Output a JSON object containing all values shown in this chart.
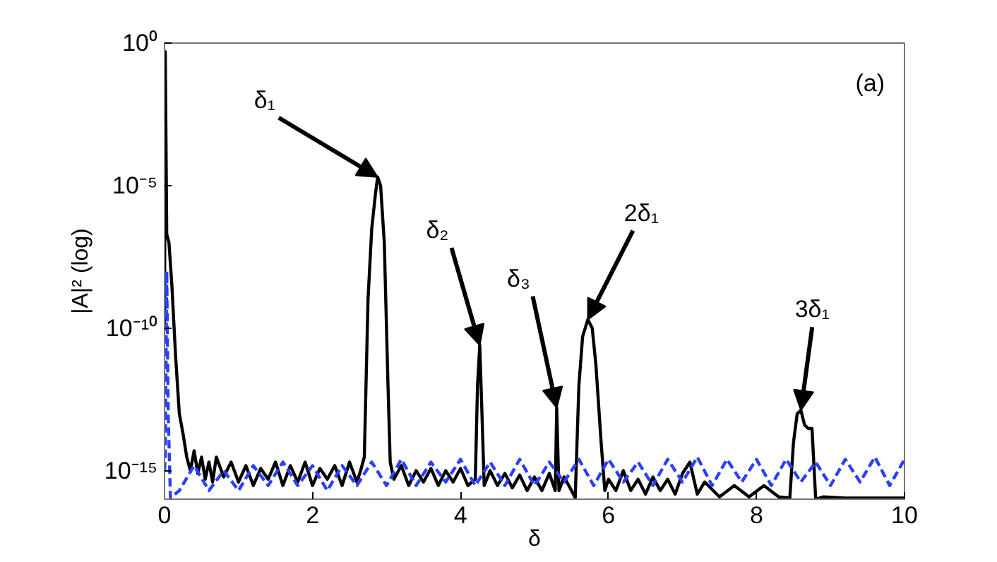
{
  "chart_data": {
    "type": "line",
    "xlabel": "δ",
    "ylabel": "|A|² (log)",
    "log": "y",
    "grid": false,
    "marker": "none",
    "xlim": [
      0,
      10
    ],
    "xticks": [
      0,
      2,
      4,
      6,
      8,
      10
    ],
    "ylim": [
      1e-16,
      1
    ],
    "yticks": [
      {
        "value": 1,
        "label": "10⁰"
      },
      {
        "value": 1e-05,
        "label": "10⁻⁵"
      },
      {
        "value": 1e-10,
        "label": "10⁻¹⁰"
      },
      {
        "value": 1e-15,
        "label": "10⁻¹⁵"
      }
    ],
    "annotations": [
      "(a)",
      {
        "text": "δ₁",
        "x": 2.88,
        "y": 2e-05
      },
      {
        "text": "δ₂",
        "x": 4.26,
        "y": 2.5e-11
      },
      {
        "text": "δ₃",
        "x": 5.3,
        "y": 1.6e-13
      },
      {
        "text": "2δ₁",
        "x": 5.72,
        "y": 2e-10
      },
      {
        "text": "3δ₁",
        "x": 8.6,
        "y": 1.3e-13
      }
    ],
    "series": [
      {
        "color": "#000000",
        "line_style": "solid",
        "x": [
          0.0,
          0.01,
          0.03,
          0.06,
          0.1,
          0.15,
          0.2,
          0.25,
          0.3,
          0.35,
          0.4,
          0.45,
          0.5,
          0.55,
          0.6,
          0.65,
          0.7,
          0.8,
          0.9,
          1.0,
          1.1,
          1.2,
          1.3,
          1.4,
          1.5,
          1.6,
          1.7,
          1.8,
          1.9,
          2.0,
          2.1,
          2.2,
          2.3,
          2.4,
          2.5,
          2.6,
          2.65,
          2.7,
          2.75,
          2.8,
          2.85,
          2.88,
          2.92,
          2.97,
          3.02,
          3.05,
          3.1,
          3.2,
          3.3,
          3.4,
          3.5,
          3.6,
          3.7,
          3.8,
          3.9,
          4.0,
          4.1,
          4.2,
          4.23,
          4.26,
          4.29,
          4.32,
          4.4,
          4.5,
          4.6,
          4.7,
          4.8,
          4.9,
          5.0,
          5.1,
          5.2,
          5.28,
          5.3,
          5.33,
          5.4,
          5.5,
          5.55,
          5.6,
          5.65,
          5.72,
          5.78,
          5.83,
          5.9,
          5.95,
          6.0,
          6.1,
          6.2,
          6.3,
          6.4,
          6.5,
          6.6,
          6.7,
          6.8,
          6.9,
          7.0,
          7.1,
          7.2,
          7.3,
          7.5,
          7.7,
          7.9,
          8.1,
          8.3,
          8.45,
          8.5,
          8.55,
          8.6,
          8.65,
          8.7,
          8.75,
          8.8,
          8.9,
          9.2,
          9.6,
          10.0
        ],
        "values": [
          1e-10,
          0.5,
          2e-07,
          1e-07,
          3e-09,
          1e-11,
          1e-13,
          2e-14,
          3e-15,
          1e-15,
          5e-15,
          8e-16,
          3e-15,
          5e-16,
          2e-15,
          4e-16,
          3e-15,
          6e-16,
          2e-15,
          4e-16,
          1.5e-15,
          3e-16,
          1.2e-15,
          5e-16,
          2e-15,
          3e-16,
          1.5e-15,
          4e-16,
          2e-15,
          3e-16,
          1.2e-15,
          5e-16,
          1.5e-15,
          3e-16,
          2e-15,
          4e-16,
          1e-15,
          3e-15,
          1e-09,
          3e-07,
          5e-06,
          2e-05,
          1e-05,
          1e-07,
          1e-12,
          2e-15,
          5e-16,
          1.5e-15,
          3e-16,
          1e-15,
          4e-16,
          1.2e-15,
          3e-16,
          1e-15,
          4e-16,
          1.2e-15,
          3e-16,
          5e-16,
          1e-12,
          2.5e-11,
          1e-13,
          3e-16,
          1e-15,
          3e-16,
          8e-16,
          2.5e-16,
          7e-16,
          2e-16,
          6e-16,
          2e-16,
          8e-16,
          2e-16,
          1.6e-13,
          2e-16,
          6e-16,
          2e-16,
          1.1e-16,
          1e-12,
          5e-11,
          2e-10,
          1e-10,
          5e-12,
          1e-14,
          2e-16,
          5e-16,
          2e-16,
          1e-15,
          2e-16,
          5e-16,
          1.5e-16,
          6e-16,
          2e-16,
          5e-16,
          1.5e-16,
          8e-16,
          2e-15,
          1.5e-16,
          4e-16,
          1.2e-16,
          3e-16,
          1.2e-16,
          3e-16,
          1.2e-16,
          1.1e-16,
          1e-14,
          1e-13,
          1.3e-13,
          4e-14,
          3e-14,
          3e-14,
          1e-16,
          1.2e-16,
          1.1e-16,
          1.1e-16,
          1.1e-16
        ]
      },
      {
        "color": "#2b3fff",
        "line_style": "dashed",
        "x": [
          0.0,
          0.01,
          0.03,
          0.05,
          0.08,
          0.2,
          0.4,
          0.6,
          0.8,
          1.0,
          1.2,
          1.4,
          1.6,
          1.8,
          2.0,
          2.2,
          2.4,
          2.6,
          2.8,
          3.0,
          3.2,
          3.4,
          3.6,
          3.8,
          4.0,
          4.2,
          4.4,
          4.6,
          4.8,
          5.0,
          5.2,
          5.4,
          5.6,
          5.8,
          6.0,
          6.2,
          6.4,
          6.6,
          6.8,
          7.0,
          7.2,
          7.4,
          7.6,
          7.8,
          8.0,
          8.2,
          8.4,
          8.6,
          8.8,
          9.0,
          9.2,
          9.4,
          9.6,
          9.8,
          10.0
        ],
        "values": [
          1e-15,
          3e-15,
          1e-08,
          1e-13,
          1.1e-16,
          2e-16,
          1.5e-15,
          2e-16,
          1e-15,
          2e-16,
          1.5e-15,
          3e-16,
          2e-15,
          3e-16,
          1.5e-15,
          2e-16,
          1.5e-15,
          3e-16,
          2e-15,
          3e-16,
          2.5e-15,
          3e-16,
          2e-15,
          4e-16,
          2.5e-15,
          3e-16,
          2e-15,
          3e-16,
          2.5e-15,
          3e-16,
          2e-15,
          4e-16,
          2.5e-15,
          3e-16,
          2.5e-15,
          4e-16,
          2e-15,
          3e-16,
          2.5e-15,
          4e-16,
          3e-15,
          3e-16,
          2.5e-15,
          4e-16,
          2.5e-15,
          3e-16,
          2.5e-15,
          4e-16,
          2e-15,
          3e-16,
          2.5e-15,
          4e-16,
          3e-15,
          3e-16,
          2.5e-15
        ]
      }
    ]
  }
}
